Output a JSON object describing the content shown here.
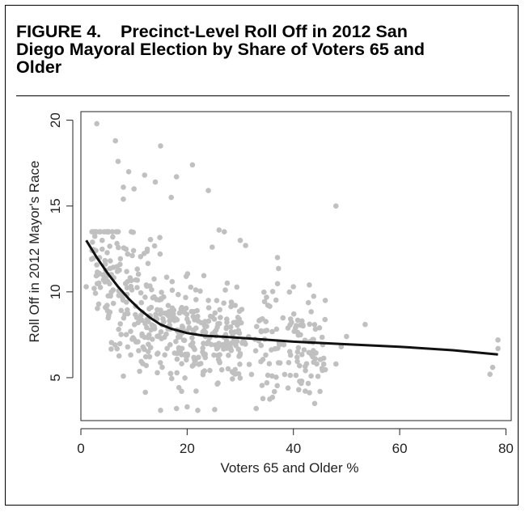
{
  "figure": {
    "title_line1": "FIGURE 4.    Precinct-Level Roll Off in 2012 San",
    "title_line2": "Diego Mayoral Election by Share of Voters 65 and",
    "title_line3": "Older"
  },
  "chart_data": {
    "type": "scatter",
    "xlabel": "Voters 65 and Older %",
    "ylabel": "Roll Off in 2012 Mayor's Race",
    "xlim": [
      0,
      81
    ],
    "ylim": [
      2.5,
      20.5
    ],
    "xticks": [
      0,
      20,
      40,
      60,
      80
    ],
    "yticks": [
      5,
      10,
      15,
      20
    ],
    "grid": false,
    "point_color": "#c0c0c0",
    "line_color": "#111111",
    "highlighted_points": [
      [
        3,
        19.8
      ],
      [
        6.5,
        18.8
      ],
      [
        15,
        18.5
      ],
      [
        7,
        17.6
      ],
      [
        9,
        17.0
      ],
      [
        12,
        16.8
      ],
      [
        21,
        17.4
      ],
      [
        8,
        16.1
      ],
      [
        10,
        16.0
      ],
      [
        14,
        16.4
      ],
      [
        18,
        16.7
      ],
      [
        24,
        15.9
      ],
      [
        48,
        15.0
      ],
      [
        8,
        15.4
      ],
      [
        17,
        15.5
      ],
      [
        4,
        13.0
      ],
      [
        6,
        13.2
      ],
      [
        26,
        13.6
      ],
      [
        27,
        13.5
      ],
      [
        30,
        13.0
      ],
      [
        31,
        12.7
      ],
      [
        37,
        12.0
      ],
      [
        43,
        10.4
      ],
      [
        40,
        10.3
      ],
      [
        46,
        9.5
      ],
      [
        53.5,
        8.1
      ],
      [
        50,
        7.4
      ],
      [
        49,
        6.8
      ],
      [
        48,
        5.8
      ],
      [
        78.5,
        7.2
      ],
      [
        78.5,
        6.7
      ],
      [
        77.5,
        5.6
      ],
      [
        77,
        5.2
      ],
      [
        1,
        10.3
      ],
      [
        2.5,
        10.2
      ],
      [
        15,
        3.1
      ],
      [
        18,
        3.2
      ],
      [
        20,
        3.3
      ],
      [
        22,
        3.1
      ],
      [
        33,
        3.2
      ],
      [
        44,
        3.5
      ],
      [
        45,
        4.2
      ],
      [
        41,
        4.3
      ],
      [
        39,
        4.4
      ],
      [
        35,
        4.7
      ],
      [
        36,
        5.1
      ]
    ],
    "lowess_line": [
      [
        1,
        13.0
      ],
      [
        3,
        12.0
      ],
      [
        5,
        11.1
      ],
      [
        7,
        10.3
      ],
      [
        9,
        9.6
      ],
      [
        11,
        9.0
      ],
      [
        13,
        8.5
      ],
      [
        15,
        8.1
      ],
      [
        17,
        7.85
      ],
      [
        20,
        7.6
      ],
      [
        23,
        7.45
      ],
      [
        27,
        7.38
      ],
      [
        32,
        7.28
      ],
      [
        40,
        7.1
      ],
      [
        50,
        6.95
      ],
      [
        60,
        6.8
      ],
      [
        70,
        6.6
      ],
      [
        78.5,
        6.35
      ]
    ]
  }
}
